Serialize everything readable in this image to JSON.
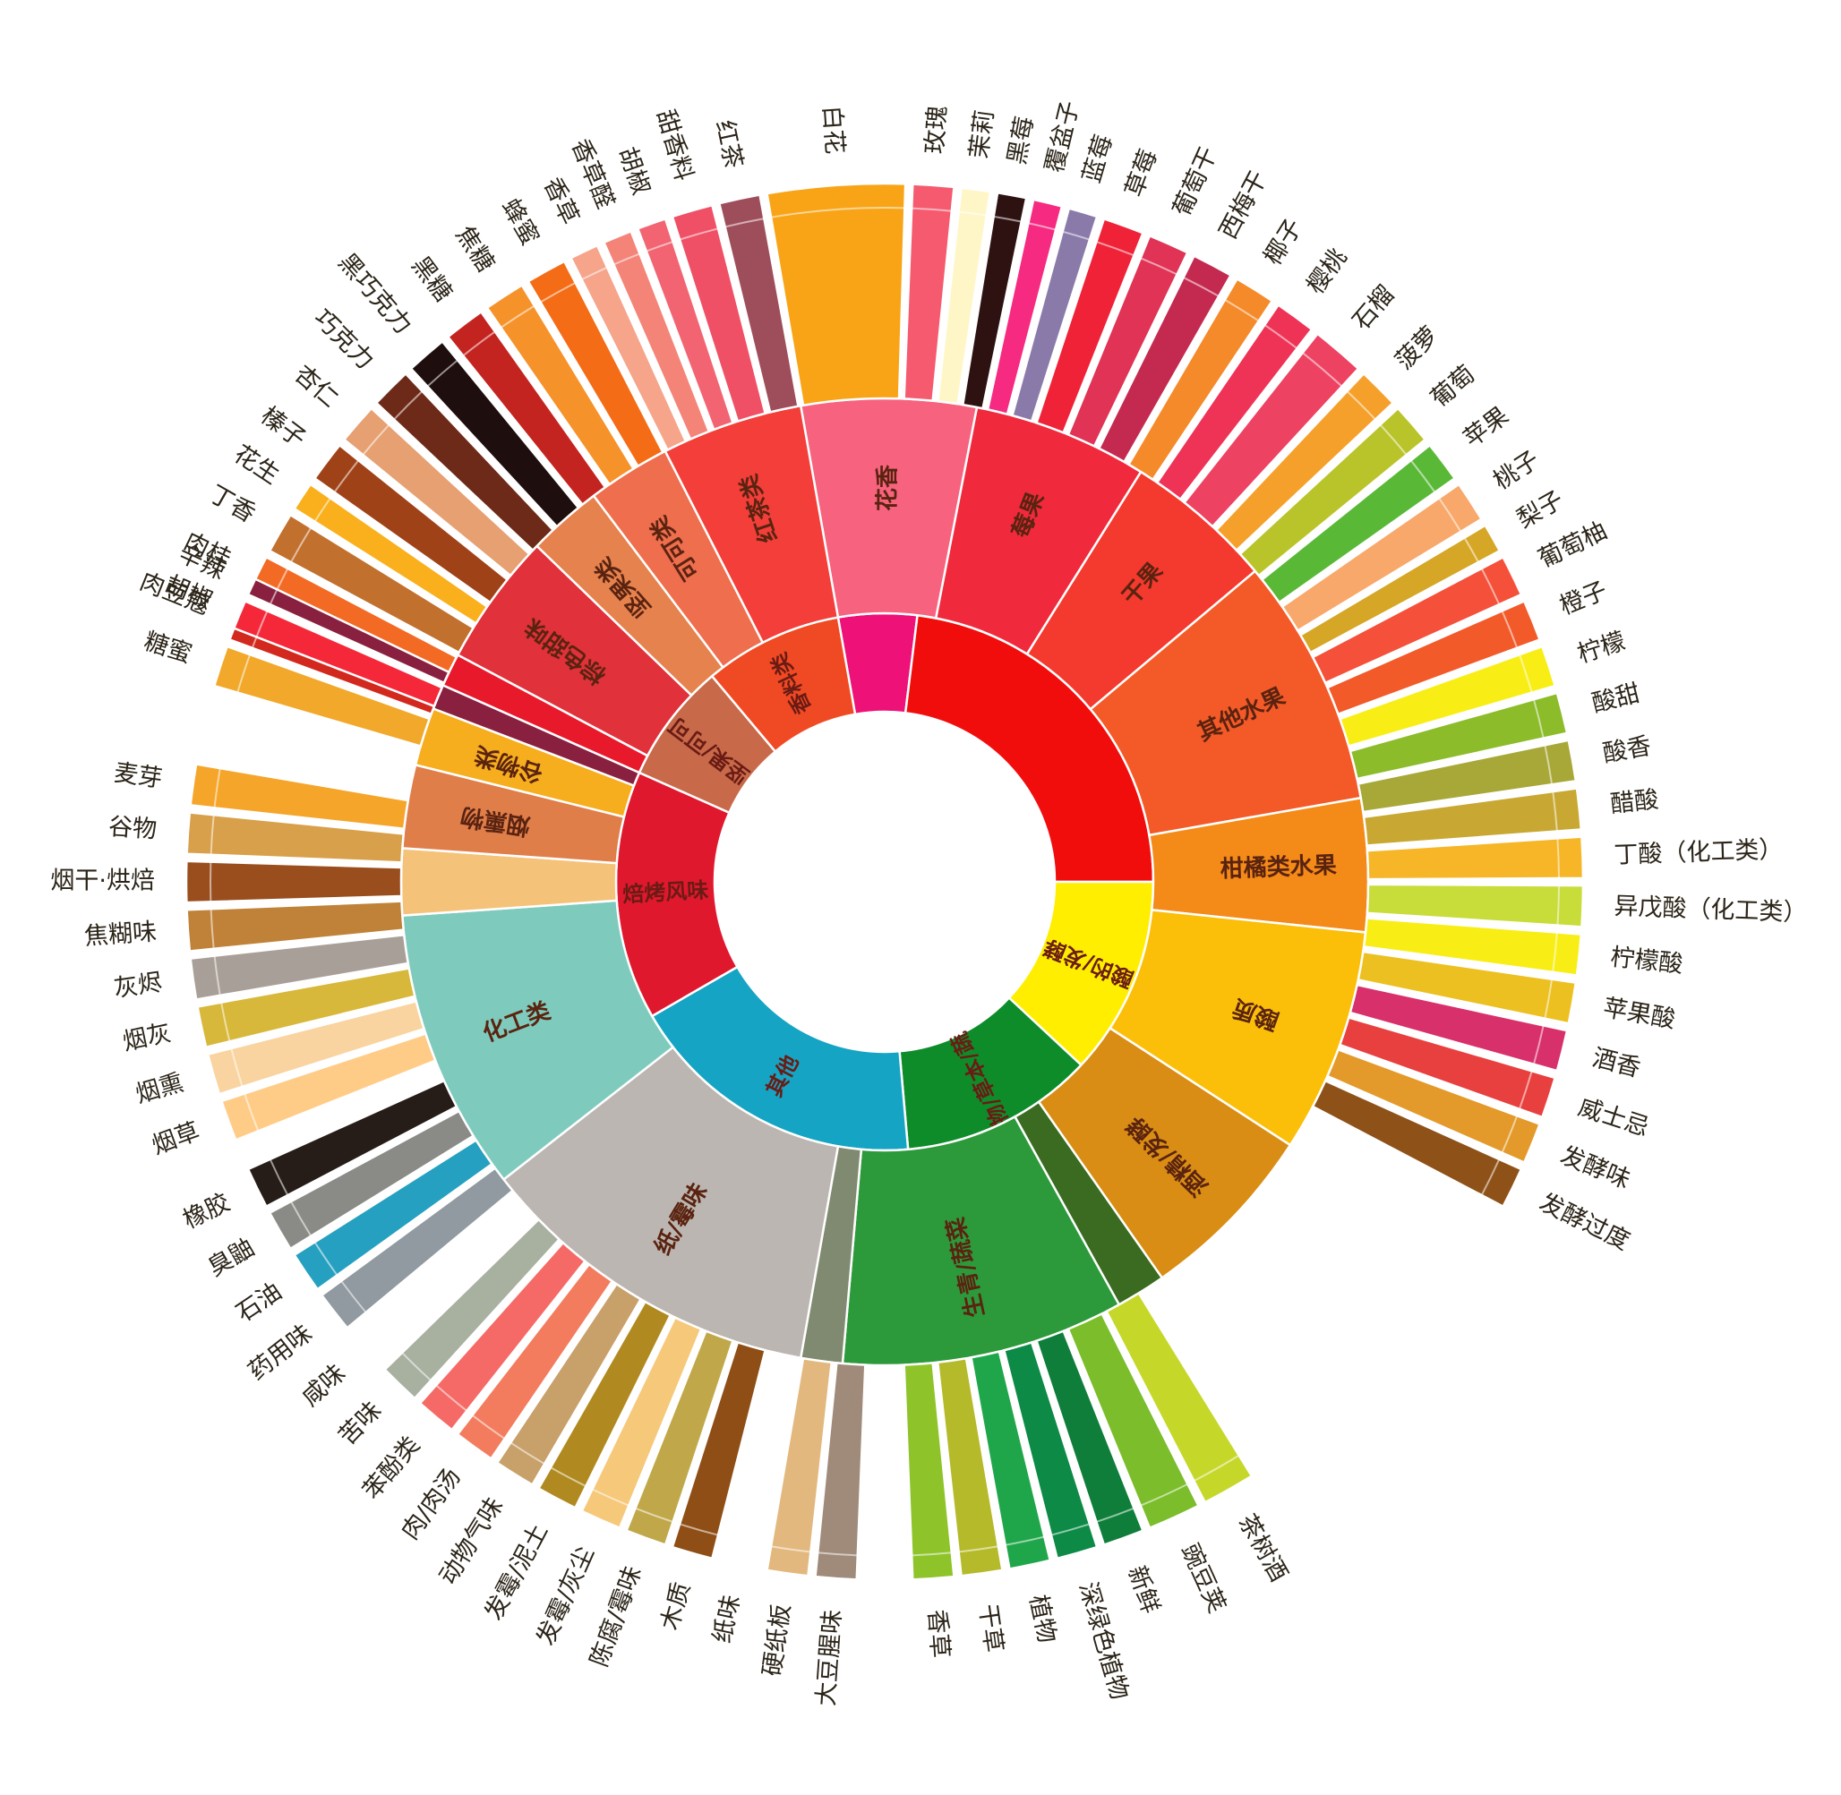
{
  "wheel": {
    "inner": [
      {
        "label": "",
        "color": "#ee1177",
        "span": [
          -10,
          7
        ]
      },
      {
        "label": "",
        "color": "#f20d0d",
        "span": [
          7,
          90
        ]
      },
      {
        "label": "酸的/发酵",
        "color": "#ffee00",
        "span": [
          90,
          133
        ]
      },
      {
        "label": "植物/草本/蔬菜",
        "color": "#0e8c2a",
        "span": [
          133,
          175
        ]
      },
      {
        "label": "其他",
        "color": "#16a4c4",
        "span": [
          175,
          240
        ]
      },
      {
        "label": "焙烤风味",
        "color": "#e0182e",
        "span": [
          240,
          294
        ]
      },
      {
        "label": "坚果/可可",
        "color": "#c86a4a",
        "span": [
          294,
          320
        ]
      },
      {
        "label": "香料类",
        "color": "#f04a24",
        "span": [
          320,
          350
        ]
      }
    ],
    "middle": [
      {
        "label": "花香",
        "color": "#f7637f",
        "span": [
          -10,
          11
        ]
      },
      {
        "label": "莓果",
        "color": "#f02a3c",
        "span": [
          11,
          32
        ]
      },
      {
        "label": "干果",
        "color": "#f4392e",
        "span": [
          32,
          50
        ]
      },
      {
        "label": "其他水果",
        "color": "#f45a28",
        "span": [
          50,
          80
        ]
      },
      {
        "label": "柑橘类水果",
        "color": "#f48a18",
        "span": [
          80,
          96
        ]
      },
      {
        "label": "酸质",
        "color": "#fbbf0a",
        "span": [
          96,
          123
        ]
      },
      {
        "label": "酒精/发酵",
        "color": "#d98d14",
        "span": [
          123,
          145
        ]
      },
      {
        "label": "",
        "color": "#3a6b20",
        "span": [
          145,
          151
        ]
      },
      {
        "label": "生青/蔬菜",
        "color": "#2c9a3a",
        "span": [
          151,
          185
        ]
      },
      {
        "label": "",
        "color": "#808a70",
        "span": [
          185,
          190
        ]
      },
      {
        "label": "纸/霉味",
        "color": "#bcb6b2",
        "span": [
          190,
          232
        ]
      },
      {
        "label": "化工类",
        "color": "#7ecbbd",
        "span": [
          232,
          266
        ]
      },
      {
        "label": "",
        "color": "#f5c27a",
        "span": [
          266,
          274
        ]
      },
      {
        "label": "烟熏物",
        "color": "#e07e4a",
        "span": [
          274,
          284
        ]
      },
      {
        "label": "谷物类",
        "color": "#f6ad1e",
        "span": [
          284,
          291
        ]
      },
      {
        "label": "",
        "color": "#8a2040",
        "span": [
          291,
          294
        ]
      },
      {
        "label": "",
        "color": "#e9192c",
        "span": [
          294,
          298
        ]
      },
      {
        "label": "棕色甜味",
        "color": "#e1313a",
        "span": [
          298,
          314
        ]
      },
      {
        "label": "坚果类",
        "color": "#e6824e",
        "span": [
          314,
          323
        ]
      },
      {
        "label": "可可类",
        "color": "#ee6e4e",
        "span": [
          323,
          333
        ]
      },
      {
        "label": "红茶类",
        "color": "#f33e3a",
        "span": [
          333,
          350
        ]
      }
    ],
    "outer": [
      {
        "label": "白花",
        "color": "#f8a416",
        "span": [
          -10,
          2
        ]
      },
      {
        "label": "玫瑰",
        "color": "#f55a6e",
        "span": [
          2,
          6
        ]
      },
      {
        "label": "茉莉",
        "color": "#fff6c8",
        "span": [
          6,
          9
        ]
      },
      {
        "label": "黑莓",
        "color": "#2e1212",
        "span": [
          9,
          12
        ]
      },
      {
        "label": "覆盆子",
        "color": "#f52a80",
        "span": [
          12,
          15
        ]
      },
      {
        "label": "蓝莓",
        "color": "#8a7aaa",
        "span": [
          15,
          18
        ]
      },
      {
        "label": "草莓",
        "color": "#f02238",
        "span": [
          18,
          22
        ]
      },
      {
        "label": "葡萄干",
        "color": "#e03356",
        "span": [
          22,
          26
        ]
      },
      {
        "label": "西梅干",
        "color": "#c42a50",
        "span": [
          26,
          30
        ]
      },
      {
        "label": "椰子",
        "color": "#f58a2a",
        "span": [
          30,
          34
        ]
      },
      {
        "label": "樱桃",
        "color": "#ee3356",
        "span": [
          34,
          38
        ]
      },
      {
        "label": "石榴",
        "color": "#ee4262",
        "span": [
          38,
          43
        ]
      },
      {
        "label": "菠萝",
        "color": "#f6a02c",
        "span": [
          43,
          47
        ]
      },
      {
        "label": "葡萄",
        "color": "#b9c42a",
        "span": [
          47,
          51
        ]
      },
      {
        "label": "苹果",
        "color": "#5ab837",
        "span": [
          51,
          55
        ]
      },
      {
        "label": "桃子",
        "color": "#f8a86a",
        "span": [
          55,
          59
        ]
      },
      {
        "label": "梨子",
        "color": "#d6a626",
        "span": [
          59,
          62
        ]
      },
      {
        "label": "葡萄柚",
        "color": "#f4503a",
        "span": [
          62,
          66
        ]
      },
      {
        "label": "橙子",
        "color": "#f25a2a",
        "span": [
          66,
          70
        ]
      },
      {
        "label": "柠檬",
        "color": "#f8ee16",
        "span": [
          70,
          74
        ]
      },
      {
        "label": "酸甜",
        "color": "#8cbc2a",
        "span": [
          74,
          78
        ]
      },
      {
        "label": "酸香",
        "color": "#a8a838",
        "span": [
          78,
          82
        ]
      },
      {
        "label": "醋酸",
        "color": "#c8a832",
        "span": [
          82,
          86
        ]
      },
      {
        "label": "丁酸（化工类）",
        "color": "#f6b628",
        "span": [
          86,
          90
        ]
      },
      {
        "label": "异戊酸（化工类）",
        "color": "#c8dc3a",
        "span": [
          90,
          94
        ]
      },
      {
        "label": "柠檬酸",
        "color": "#f8ee16",
        "span": [
          94,
          98
        ]
      },
      {
        "label": "苹果酸",
        "color": "#ecc020",
        "span": [
          98,
          102
        ]
      },
      {
        "label": "酒香",
        "color": "#d8306a",
        "span": [
          102,
          106
        ]
      },
      {
        "label": "威士忌",
        "color": "#e8403e",
        "span": [
          106,
          110
        ]
      },
      {
        "label": "发酵味",
        "color": "#e39a2a",
        "span": [
          110,
          114
        ]
      },
      {
        "label": "发酵过度",
        "color": "#8e5218",
        "span": [
          114,
          118
        ]
      },
      {
        "label": "茶树酒",
        "color": "#c5d82a",
        "span": [
          148,
          153
        ]
      },
      {
        "label": "豌豆荚",
        "color": "#7bbd2a",
        "span": [
          153,
          158
        ]
      },
      {
        "label": "新鲜",
        "color": "#0e7e3a",
        "span": [
          158,
          162
        ]
      },
      {
        "label": "深绿色植物",
        "color": "#0c8a46",
        "span": [
          162,
          166
        ]
      },
      {
        "label": "植物",
        "color": "#20a64a",
        "span": [
          166,
          170
        ]
      },
      {
        "label": "干草",
        "color": "#b5ba2a",
        "span": [
          170,
          174
        ]
      },
      {
        "label": "香草",
        "color": "#8ec42a",
        "span": [
          174,
          178
        ]
      },
      {
        "label": "大豆腥味",
        "color": "#a08a7a",
        "span": [
          182,
          186
        ]
      },
      {
        "label": "硬纸板",
        "color": "#e2b87e",
        "span": [
          186,
          190
        ]
      },
      {
        "label": "纸味",
        "color": "#ffffff",
        "span": [
          190,
          194
        ]
      },
      {
        "label": "木质",
        "color": "#8e4e16",
        "span": [
          194,
          198
        ]
      },
      {
        "label": "陈腐/霉味",
        "color": "#c0a84a",
        "span": [
          198,
          202
        ]
      },
      {
        "label": "发霉/灰尘",
        "color": "#f6c87a",
        "span": [
          202,
          206
        ]
      },
      {
        "label": "发霉/泥土",
        "color": "#b08a20",
        "span": [
          206,
          210
        ]
      },
      {
        "label": "动物气味",
        "color": "#c8a06a",
        "span": [
          210,
          214
        ]
      },
      {
        "label": "肉/肉汤",
        "color": "#f37c5e",
        "span": [
          214,
          218
        ]
      },
      {
        "label": "苯酚类",
        "color": "#f56a66",
        "span": [
          218,
          222
        ]
      },
      {
        "label": "苦味",
        "color": "#a8b0a0",
        "span": [
          222,
          226
        ]
      },
      {
        "label": "咸味",
        "color": "#ffffff",
        "span": [
          226,
          230
        ]
      },
      {
        "label": "药用味",
        "color": "#909aa0",
        "span": [
          230,
          234
        ]
      },
      {
        "label": "石油",
        "color": "#26a0c0",
        "span": [
          234,
          238
        ]
      },
      {
        "label": "臭鼬",
        "color": "#8a8a86",
        "span": [
          238,
          242
        ]
      },
      {
        "label": "橡胶",
        "color": "#261c18",
        "span": [
          242,
          246
        ]
      },
      {
        "label": "烟灰",
        "color": "#d8b83a",
        "span": [
          256,
          260
        ]
      },
      {
        "label": "灰烬",
        "color": "#a8a098",
        "span": [
          260,
          264
        ]
      },
      {
        "label": "焦糊味",
        "color": "#c08238",
        "span": [
          264,
          268
        ]
      },
      {
        "label": "烟干·烘焙",
        "color": "#9a4e1e",
        "span": [
          268,
          272
        ]
      },
      {
        "label": "谷物",
        "color": "#d8a04a",
        "span": [
          272,
          276
        ]
      },
      {
        "label": "麦芽",
        "color": "#f5a52a",
        "span": [
          276,
          280
        ]
      },
      {
        "label": "糖蜜",
        "color": "#f2a82a",
        "span": [
          286,
          290
        ]
      },
      {
        "label": "肉豆蔻",
        "color": "#d2281e",
        "span": [
          290,
          294
        ]
      },
      {
        "label": "肉桂",
        "color": "#f36a24",
        "span": [
          294,
          298
        ]
      },
      {
        "label": "丁香",
        "color": "#c2702e",
        "span": [
          298,
          302
        ]
      },
      {
        "label": "花生",
        "color": "#f9b01c",
        "span": [
          302,
          305
        ]
      },
      {
        "label": "榛子",
        "color": "#a04218",
        "span": [
          305,
          309
        ]
      },
      {
        "label": "杏仁",
        "color": "#e6a072",
        "span": [
          309,
          313
        ]
      },
      {
        "label": "巧克力",
        "color": "#6e2a18",
        "span": [
          313,
          317
        ]
      },
      {
        "label": "黑巧克力",
        "color": "#1e0e0e",
        "span": [
          317,
          321
        ]
      },
      {
        "label": "黑糖",
        "color": "#c42420",
        "span": [
          321,
          325
        ]
      },
      {
        "label": "焦糖",
        "color": "#f6922a",
        "span": [
          325,
          329
        ]
      },
      {
        "label": "蜂蜜",
        "color": "#f46c16",
        "span": [
          329,
          333
        ]
      },
      {
        "label": "香草",
        "color": "#f6a48a",
        "span": [
          333,
          336
        ]
      },
      {
        "label": "香草醛",
        "color": "#f48478",
        "span": [
          336,
          339
        ]
      },
      {
        "label": "胡椒",
        "color": "#f26472",
        "span": [
          339,
          342
        ]
      },
      {
        "label": "甜香料",
        "color": "#ef5066",
        "span": [
          342,
          346
        ]
      },
      {
        "label": "红茶",
        "color": "#9e4e5a",
        "span": [
          346,
          350
        ]
      }
    ],
    "loose": [
      {
        "label": "胡椒",
        "color": "#f5283a",
        "span": [
          291,
          294
        ]
      },
      {
        "label": "辛辣",
        "color": "#8a2040",
        "span": [
          294,
          296
        ]
      },
      {
        "label": "烟熏",
        "color": "#f9d4a0",
        "span": [
          252,
          256
        ]
      },
      {
        "label": "烟草",
        "color": "#ffcc88",
        "span": [
          248,
          252
        ]
      }
    ]
  }
}
